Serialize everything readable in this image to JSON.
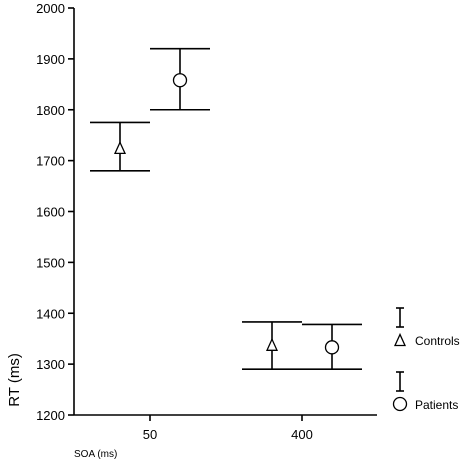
{
  "chart_data": {
    "type": "scatter",
    "title": "",
    "xlabel": "SOA (ms)",
    "ylabel": "RT (ms)",
    "categories": [
      "50",
      "400"
    ],
    "ylim": [
      1200,
      2000
    ],
    "yticks": [
      1200,
      1300,
      1400,
      1500,
      1600,
      1700,
      1800,
      1900,
      2000
    ],
    "grid": false,
    "legend_position": "right",
    "series": [
      {
        "name": "Controls",
        "marker": "triangle",
        "points": [
          {
            "x": "50",
            "y": 1725,
            "low": 1680,
            "high": 1775
          },
          {
            "x": "400",
            "y": 1338,
            "low": 1290,
            "high": 1383
          }
        ]
      },
      {
        "name": "Patients",
        "marker": "circle",
        "points": [
          {
            "x": "50",
            "y": 1858,
            "low": 1800,
            "high": 1920
          },
          {
            "x": "400",
            "y": 1333,
            "low": 1290,
            "high": 1378
          }
        ]
      }
    ]
  }
}
